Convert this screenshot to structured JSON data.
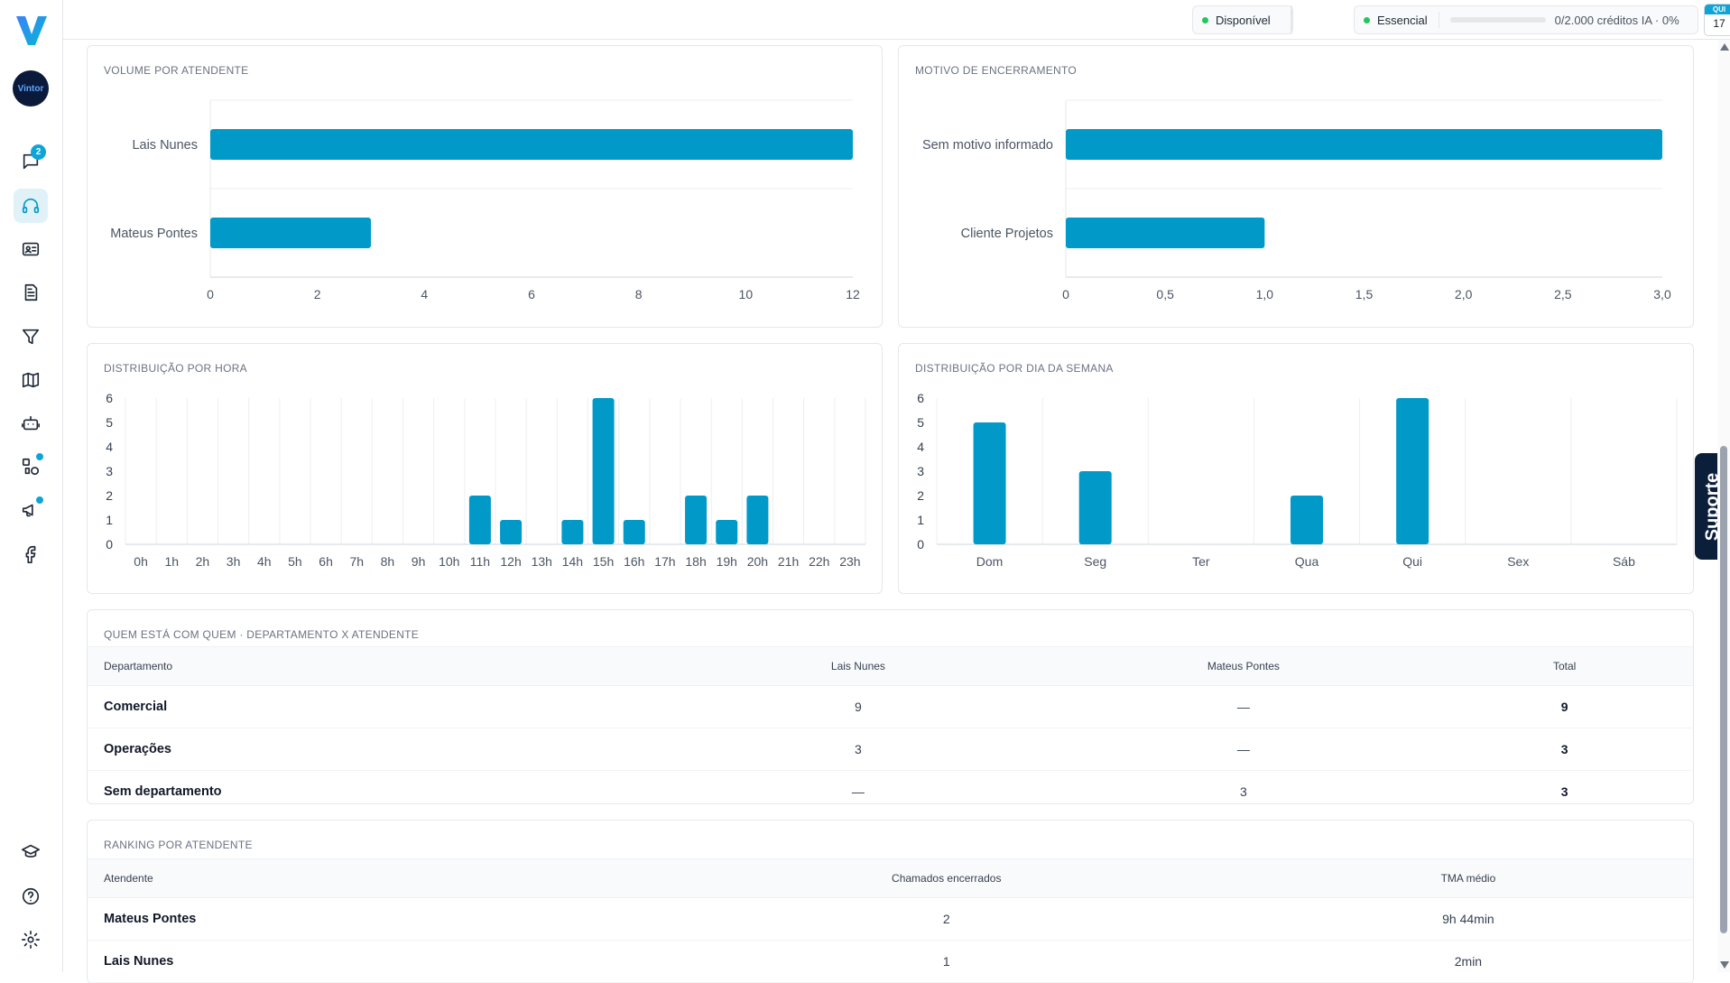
{
  "header": {
    "status_label": "Disponível",
    "plan_label": "Essencial",
    "credits_label": "0/2.000 créditos IA · 0%",
    "credits_fraction": 0,
    "calendar_day_name": "QUI",
    "calendar_day_number": "17"
  },
  "sidebar": {
    "avatar_text": "Vintor",
    "chat_badge": "2"
  },
  "support_label": "Suporte",
  "colors": {
    "bar": "#0099c8",
    "accent": "#0ea5d6",
    "status_green": "#22c55e"
  },
  "cards": {
    "volume": {
      "title": "VOLUME POR ATENDENTE"
    },
    "motivo": {
      "title": "MOTIVO DE ENCERRAMENTO"
    },
    "hora": {
      "title": "DISTRIBUIÇÃO POR HORA"
    },
    "dia": {
      "title": "DISTRIBUIÇÃO POR DIA DA SEMANA"
    }
  },
  "chart_data": [
    {
      "id": "volume",
      "type": "bar",
      "orientation": "horizontal",
      "categories": [
        "Lais Nunes",
        "Mateus Pontes"
      ],
      "values": [
        12,
        3
      ],
      "xlim": [
        0,
        12
      ],
      "xticks": [
        "0",
        "2",
        "4",
        "6",
        "8",
        "10",
        "12"
      ]
    },
    {
      "id": "motivo",
      "type": "bar",
      "orientation": "horizontal",
      "categories": [
        "Sem motivo informado",
        "Cliente Projetos"
      ],
      "values": [
        3,
        1
      ],
      "xlim": [
        0,
        3
      ],
      "xticks": [
        "0",
        "0,5",
        "1,0",
        "1,5",
        "2,0",
        "2,5",
        "3,0"
      ]
    },
    {
      "id": "hora",
      "type": "bar",
      "categories": [
        "0h",
        "1h",
        "2h",
        "3h",
        "4h",
        "5h",
        "6h",
        "7h",
        "8h",
        "9h",
        "10h",
        "11h",
        "12h",
        "13h",
        "14h",
        "15h",
        "16h",
        "17h",
        "18h",
        "19h",
        "20h",
        "21h",
        "22h",
        "23h"
      ],
      "values": [
        0,
        0,
        0,
        0,
        0,
        0,
        0,
        0,
        0,
        0,
        0,
        2,
        1,
        0,
        1,
        6,
        1,
        0,
        2,
        1,
        2,
        0,
        0,
        0
      ],
      "ylim": [
        0,
        6
      ],
      "yticks": [
        "0",
        "1",
        "2",
        "3",
        "4",
        "5",
        "6"
      ],
      "grid": true
    },
    {
      "id": "dia",
      "type": "bar",
      "categories": [
        "Dom",
        "Seg",
        "Ter",
        "Qua",
        "Qui",
        "Sex",
        "Sáb"
      ],
      "values": [
        5,
        3,
        0,
        2,
        6,
        0,
        0
      ],
      "ylim": [
        0,
        6
      ],
      "yticks": [
        "0",
        "1",
        "2",
        "3",
        "4",
        "5",
        "6"
      ],
      "grid": true
    }
  ],
  "dept_table": {
    "title": "QUEM ESTÁ COM QUEM · DEPARTAMENTO X ATENDENTE",
    "headers": [
      "Departamento",
      "Lais Nunes",
      "Mateus Pontes",
      "Total"
    ],
    "rows": [
      [
        "Comercial",
        "9",
        "—",
        "9"
      ],
      [
        "Operações",
        "3",
        "—",
        "3"
      ],
      [
        "Sem departamento",
        "—",
        "3",
        "3"
      ]
    ]
  },
  "ranking_table": {
    "title": "RANKING POR ATENDENTE",
    "headers": [
      "Atendente",
      "Chamados encerrados",
      "TMA médio"
    ],
    "rows": [
      [
        "Mateus Pontes",
        "2",
        "9h 44min"
      ],
      [
        "Lais Nunes",
        "1",
        "2min"
      ]
    ]
  }
}
